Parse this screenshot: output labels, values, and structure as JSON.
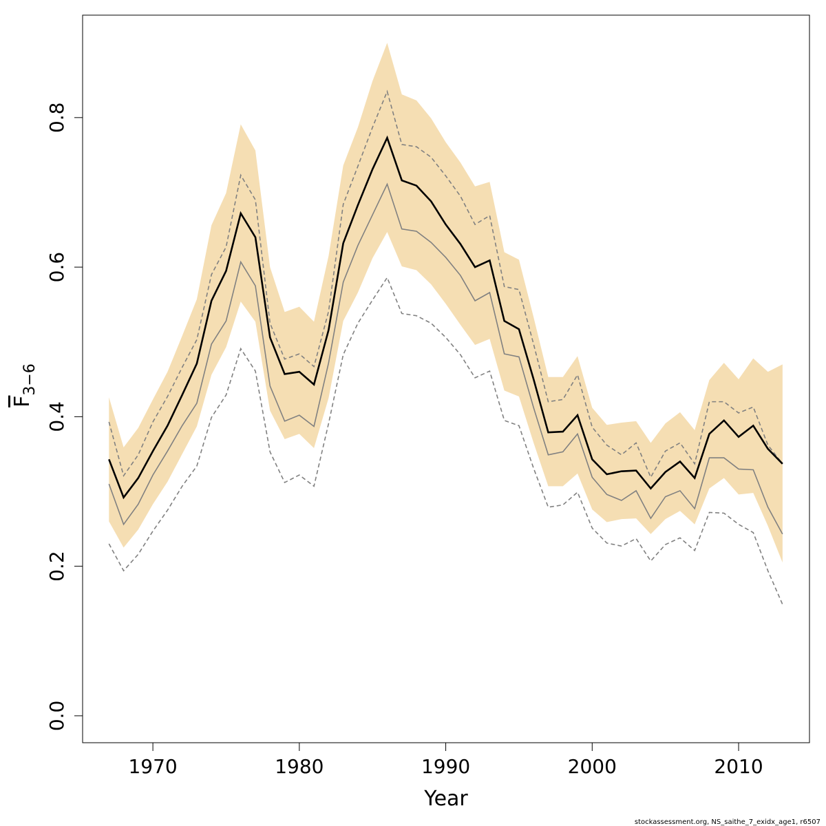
{
  "chart_data": {
    "type": "line",
    "xlabel": "Year",
    "ylabel": "F",
    "ylabel_sub": "3−6",
    "footnote": "stockassessment.org, NS_saithe_7_exidx_age1, r6507",
    "x": [
      1967,
      1968,
      1969,
      1970,
      1971,
      1972,
      1973,
      1974,
      1975,
      1976,
      1977,
      1978,
      1979,
      1980,
      1981,
      1982,
      1983,
      1984,
      1985,
      1986,
      1987,
      1988,
      1989,
      1990,
      1991,
      1992,
      1993,
      1994,
      1995,
      1996,
      1997,
      1998,
      1999,
      2000,
      2001,
      2002,
      2003,
      2004,
      2005,
      2006,
      2007,
      2008,
      2009,
      2010,
      2011,
      2012,
      2013
    ],
    "xlim": [
      1965.2,
      2014.84
    ],
    "xticks": [
      1970,
      1980,
      1990,
      2000,
      2010
    ],
    "ylim": [
      -0.036,
      0.937
    ],
    "yticks": [
      {
        "value": 0,
        "label": "0.0"
      },
      0.2,
      0.4,
      0.6,
      0.8
    ],
    "band": {
      "color": "#f5deb3",
      "upper": [
        0.426,
        0.359,
        0.385,
        0.423,
        0.46,
        0.508,
        0.557,
        0.656,
        0.699,
        0.791,
        0.756,
        0.6,
        0.54,
        0.547,
        0.527,
        0.615,
        0.736,
        0.787,
        0.849,
        0.9,
        0.831,
        0.823,
        0.799,
        0.767,
        0.74,
        0.708,
        0.714,
        0.62,
        0.61,
        0.533,
        0.453,
        0.453,
        0.481,
        0.412,
        0.389,
        0.392,
        0.394,
        0.365,
        0.391,
        0.406,
        0.382,
        0.449,
        0.472,
        0.45,
        0.478,
        0.46,
        0.47
      ],
      "lower": [
        0.26,
        0.225,
        0.249,
        0.283,
        0.313,
        0.35,
        0.387,
        0.456,
        0.493,
        0.554,
        0.527,
        0.408,
        0.37,
        0.377,
        0.358,
        0.425,
        0.528,
        0.566,
        0.612,
        0.647,
        0.601,
        0.596,
        0.577,
        0.551,
        0.523,
        0.496,
        0.504,
        0.435,
        0.427,
        0.365,
        0.307,
        0.307,
        0.324,
        0.276,
        0.259,
        0.263,
        0.264,
        0.243,
        0.263,
        0.274,
        0.256,
        0.304,
        0.318,
        0.296,
        0.298,
        0.254,
        0.205
      ]
    },
    "series": [
      {
        "color": "#808080",
        "dashed": true,
        "values": [
          0.393,
          0.321,
          0.349,
          0.393,
          0.427,
          0.466,
          0.503,
          0.59,
          0.627,
          0.723,
          0.69,
          0.525,
          0.477,
          0.484,
          0.467,
          0.541,
          0.684,
          0.735,
          0.787,
          0.835,
          0.764,
          0.761,
          0.747,
          0.722,
          0.695,
          0.657,
          0.669,
          0.574,
          0.57,
          0.497,
          0.42,
          0.423,
          0.456,
          0.386,
          0.362,
          0.349,
          0.365,
          0.319,
          0.354,
          0.365,
          0.337,
          0.42,
          0.42,
          0.405,
          0.413,
          0.362,
          0.337
        ]
      },
      {
        "color": "#808080",
        "dashed": true,
        "values": [
          0.23,
          0.194,
          0.216,
          0.247,
          0.275,
          0.307,
          0.334,
          0.399,
          0.429,
          0.491,
          0.461,
          0.353,
          0.312,
          0.322,
          0.307,
          0.391,
          0.483,
          0.525,
          0.556,
          0.586,
          0.538,
          0.535,
          0.525,
          0.506,
          0.483,
          0.452,
          0.461,
          0.395,
          0.388,
          0.331,
          0.279,
          0.282,
          0.299,
          0.251,
          0.231,
          0.227,
          0.237,
          0.207,
          0.229,
          0.238,
          0.221,
          0.272,
          0.271,
          0.256,
          0.245,
          0.194,
          0.149
        ]
      },
      {
        "color": "#808080",
        "dashed": false,
        "values": [
          0.31,
          0.256,
          0.283,
          0.322,
          0.354,
          0.388,
          0.418,
          0.497,
          0.528,
          0.607,
          0.575,
          0.441,
          0.394,
          0.402,
          0.387,
          0.472,
          0.58,
          0.629,
          0.67,
          0.711,
          0.651,
          0.648,
          0.633,
          0.613,
          0.589,
          0.555,
          0.566,
          0.484,
          0.48,
          0.412,
          0.349,
          0.353,
          0.377,
          0.319,
          0.296,
          0.288,
          0.301,
          0.264,
          0.293,
          0.301,
          0.277,
          0.345,
          0.345,
          0.33,
          0.329,
          0.279,
          0.243
        ]
      },
      {
        "color": "#000000",
        "dashed": false,
        "values": [
          0.343,
          0.292,
          0.318,
          0.354,
          0.388,
          0.429,
          0.471,
          0.555,
          0.595,
          0.672,
          0.64,
          0.506,
          0.457,
          0.46,
          0.443,
          0.516,
          0.632,
          0.683,
          0.731,
          0.773,
          0.716,
          0.709,
          0.688,
          0.657,
          0.631,
          0.6,
          0.609,
          0.528,
          0.517,
          0.45,
          0.379,
          0.38,
          0.402,
          0.343,
          0.323,
          0.327,
          0.328,
          0.304,
          0.326,
          0.34,
          0.318,
          0.377,
          0.395,
          0.373,
          0.388,
          0.357,
          0.337
        ]
      }
    ]
  }
}
